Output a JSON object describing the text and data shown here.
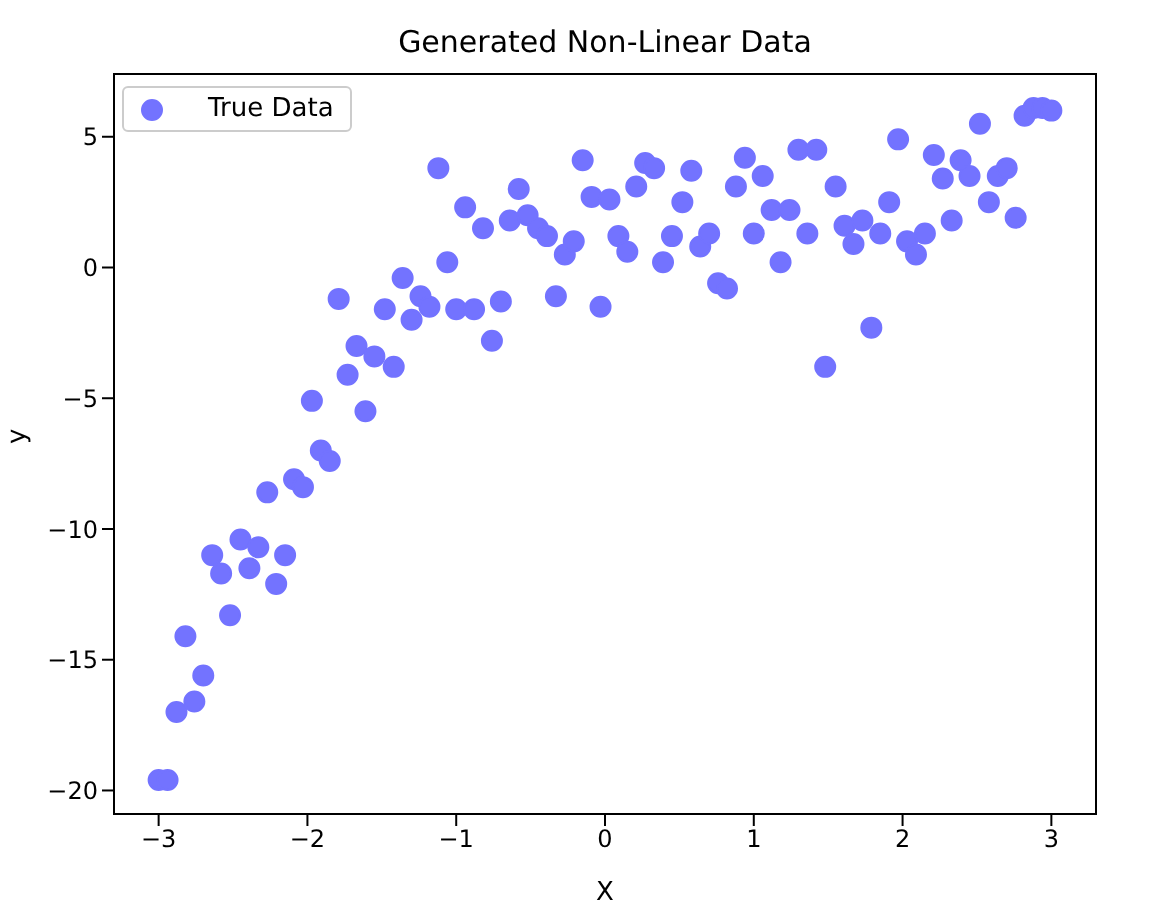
{
  "chart_data": {
    "type": "scatter",
    "title": "Generated Non-Linear Data",
    "xlabel": "X",
    "ylabel": "y",
    "xlim": [
      -3.3,
      3.3
    ],
    "xticks": [
      -3,
      -2,
      -1,
      0,
      1,
      2,
      3
    ],
    "ylim": [
      -20.9,
      7.4
    ],
    "yticks": [
      -20,
      -15,
      -10,
      -5,
      0,
      5
    ],
    "grid": false,
    "legend": "top left",
    "marker": "circle",
    "series": [
      {
        "name": "True Data",
        "color": "#7373ff",
        "x": [
          -3,
          -2.94,
          -2.88,
          -2.82,
          -2.76,
          -2.7,
          -2.64,
          -2.58,
          -2.52,
          -2.45,
          -2.39,
          -2.33,
          -2.27,
          -2.21,
          -2.15,
          -2.09,
          -2.03,
          -1.97,
          -1.91,
          -1.85,
          -1.79,
          -1.73,
          -1.67,
          -1.61,
          -1.55,
          -1.48,
          -1.42,
          -1.36,
          -1.3,
          -1.24,
          -1.18,
          -1.12,
          -1.06,
          -1.0,
          -0.94,
          -0.88,
          -0.82,
          -0.76,
          -0.7,
          -0.64,
          -0.58,
          -0.52,
          -0.45,
          -0.39,
          -0.33,
          -0.27,
          -0.21,
          -0.15,
          -0.09,
          -0.03,
          0.03,
          0.09,
          0.15,
          0.21,
          0.27,
          0.33,
          0.39,
          0.45,
          0.52,
          0.58,
          0.64,
          0.7,
          0.76,
          0.82,
          0.88,
          0.94,
          1.0,
          1.06,
          1.12,
          1.18,
          1.24,
          1.3,
          1.36,
          1.42,
          1.48,
          1.55,
          1.61,
          1.67,
          1.73,
          1.79,
          1.85,
          1.91,
          1.97,
          2.03,
          2.09,
          2.15,
          2.21,
          2.27,
          2.33,
          2.39,
          2.45,
          2.52,
          2.58,
          2.64,
          2.7,
          2.76,
          2.82,
          2.88,
          2.94,
          3
        ],
        "values": [
          -19.6,
          -19.6,
          -17.0,
          -14.1,
          -16.6,
          -15.6,
          -11.0,
          -11.7,
          -13.3,
          -10.4,
          -11.5,
          -10.7,
          -8.6,
          -12.1,
          -11.0,
          -8.1,
          -8.4,
          -5.1,
          -7.0,
          -7.4,
          -1.2,
          -4.1,
          -3.0,
          -5.5,
          -3.4,
          -1.6,
          -3.8,
          -0.4,
          -2.0,
          -1.1,
          -1.5,
          3.8,
          0.2,
          -1.6,
          2.3,
          -1.6,
          1.5,
          -2.8,
          -1.3,
          1.8,
          3.0,
          2.0,
          1.5,
          1.2,
          -1.1,
          0.5,
          1.0,
          4.1,
          2.7,
          -1.5,
          2.6,
          1.2,
          0.6,
          3.1,
          4.0,
          3.8,
          0.2,
          1.2,
          2.5,
          3.7,
          0.8,
          1.3,
          -0.6,
          -0.8,
          3.1,
          4.2,
          1.3,
          3.5,
          2.2,
          0.2,
          2.2,
          4.5,
          1.3,
          4.5,
          -3.8,
          3.1,
          1.6,
          0.9,
          1.8,
          -2.3,
          1.3,
          2.5,
          4.9,
          1.0,
          0.5,
          1.3,
          4.3,
          3.4,
          1.8,
          4.1,
          3.5,
          5.5,
          2.5,
          3.5,
          3.8,
          1.9,
          5.8,
          6.1,
          6.1,
          6.0
        ]
      }
    ]
  }
}
